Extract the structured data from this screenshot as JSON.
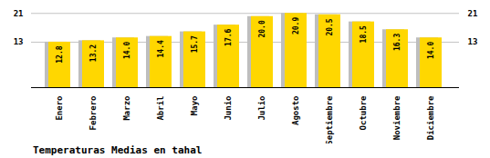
{
  "chart_data": {
    "type": "bar",
    "title": "Temperaturas Medias en tahal",
    "categories": [
      "Enero",
      "Febrero",
      "Marzo",
      "Abril",
      "Mayo",
      "Junio",
      "Julio",
      "Agosto",
      "Septiembre",
      "Octubre",
      "Noviembre",
      "Diciembre"
    ],
    "values": [
      12.8,
      13.2,
      14.0,
      14.4,
      15.7,
      17.6,
      20.0,
      20.9,
      20.5,
      18.5,
      16.3,
      14.0
    ],
    "value_labels": [
      "12.8",
      "13.2",
      "14.0",
      "14.4",
      "15.7",
      "17.6",
      "20.0",
      "20.9",
      "20.5",
      "18.5",
      "16.3",
      "14.0"
    ],
    "color": "#FFD700",
    "ylim": [
      0,
      22.5
    ],
    "yticks": [
      12.8,
      20.9
    ],
    "y2lim": [
      0,
      22.5
    ],
    "y2ticks": [
      12.8,
      20.9
    ],
    "grid": true,
    "data_labels": true
  }
}
